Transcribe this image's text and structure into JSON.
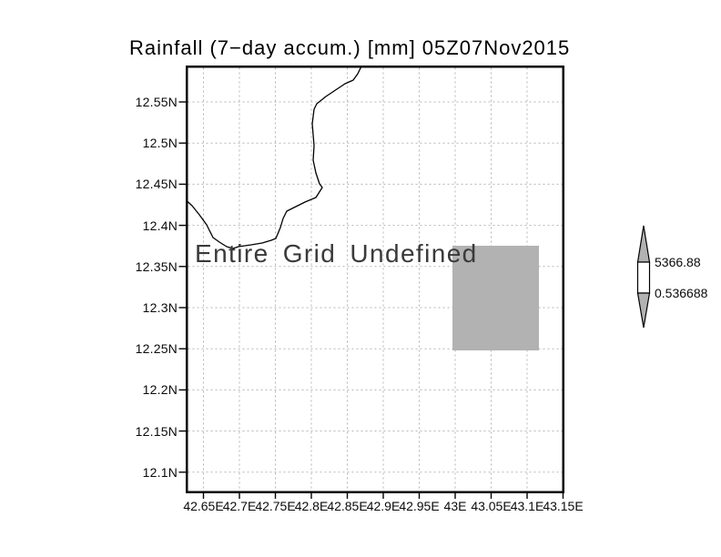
{
  "title": "Rainfall (7−day accum.) [mm] 05Z07Nov2015",
  "map": {
    "message": "Entire Grid Undefined"
  },
  "axes": {
    "y_ticks": [
      "12.55N",
      "12.5N",
      "12.45N",
      "12.4N",
      "12.35N",
      "12.3N",
      "12.25N",
      "12.2N",
      "12.15N",
      "12.1N"
    ],
    "x_ticks": [
      "42.65E",
      "42.7E",
      "42.75E",
      "42.8E",
      "42.85E",
      "42.9E",
      "42.95E",
      "43E",
      "43.05E",
      "43.1E",
      "43.15E"
    ]
  },
  "colorbar": {
    "max_label": "5366.88",
    "min_label": "0.536688"
  },
  "colors": {
    "undefined_fill": "#b2b2b2",
    "gridline": "#b5b5b5",
    "coastline": "#000000",
    "background": "#ffffff"
  },
  "chart_data": {
    "type": "heatmap",
    "title": "Rainfall (7−day accum.) [mm] 05Z07Nov2015",
    "xlabel": "",
    "ylabel": "",
    "x_tick_labels": [
      "42.65E",
      "42.7E",
      "42.75E",
      "42.8E",
      "42.85E",
      "42.9E",
      "42.95E",
      "43E",
      "43.05E",
      "43.1E",
      "43.15E"
    ],
    "y_tick_labels": [
      "12.55N",
      "12.5N",
      "12.45N",
      "12.4N",
      "12.35N",
      "12.3N",
      "12.25N",
      "12.2N",
      "12.15N",
      "12.1N"
    ],
    "xlim": [
      42.625,
      43.175
    ],
    "ylim": [
      12.073,
      12.59
    ],
    "grid": true,
    "values": null,
    "annotation": "Entire Grid Undefined",
    "colorbar": {
      "position": "right",
      "style": "min-max arrow bar",
      "min": 0.536688,
      "max": 5366.88,
      "min_label": "0.536688",
      "max_label": "5366.88"
    },
    "undefined_shaded_cell": {
      "lon_range": [
        43.0,
        43.12
      ],
      "lat_range": [
        12.25,
        12.375
      ]
    },
    "map_features": [
      "coastline"
    ]
  }
}
